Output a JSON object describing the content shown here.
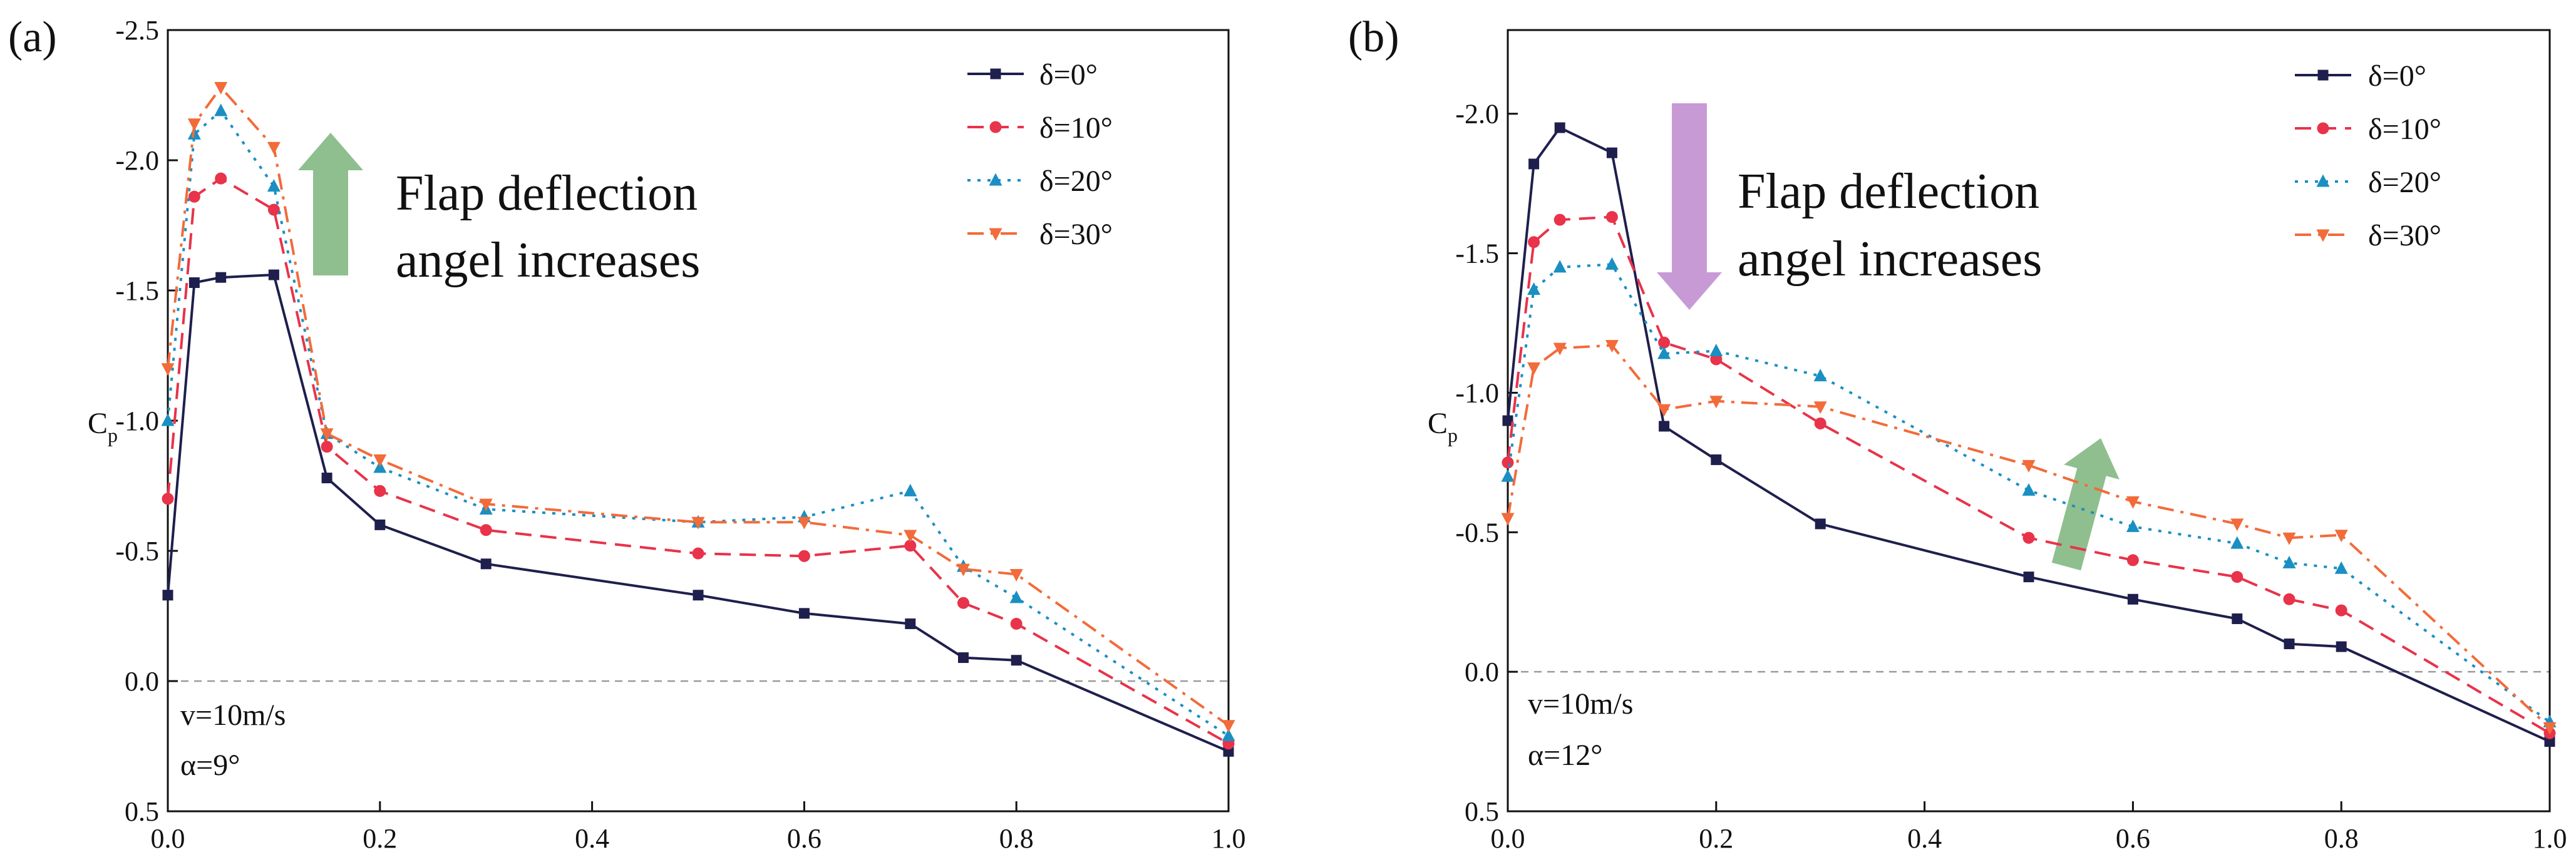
{
  "colors": {
    "s0": "#1f1f4d",
    "s10": "#e8334a",
    "s20": "#1a8fc2",
    "s30": "#f26b3a",
    "arrow_green": "#8fbf8f",
    "arrow_purple": "#c79ad6",
    "zero_line": "#9a9a9a"
  },
  "chart_data": [
    {
      "type": "line",
      "panel_label": "(a)",
      "xlabel": "",
      "ylabel": "C",
      "ylabel_sub": "p",
      "y_inverted": true,
      "xlim": [
        0.0,
        1.0
      ],
      "ylim": [
        0.5,
        -2.5
      ],
      "x_ticks": [
        0.0,
        0.2,
        0.4,
        0.6,
        0.8,
        1.0
      ],
      "x_tick_labels": [
        "0.0",
        "0.2",
        "0.4",
        "0.6",
        "0.8",
        "1.0"
      ],
      "y_ticks": [
        0.5,
        0.0,
        -0.5,
        -1.0,
        -1.5,
        -2.0,
        -2.5
      ],
      "y_tick_labels": [
        "0.5",
        "0.0",
        "-0.5",
        "-1.0",
        "-1.5",
        "-2.0",
        "-2.5"
      ],
      "annotation": {
        "line1": "Flap deflection",
        "line2": "angel increases"
      },
      "conditions": {
        "velocity": "v=10m/s",
        "alpha": "α=9°"
      },
      "legend_position": "top-right",
      "series": [
        {
          "name": "δ=0°",
          "color_key": "s0",
          "dash": "none",
          "marker": "square",
          "x": [
            0,
            0.025,
            0.05,
            0.1,
            0.15,
            0.2,
            0.3,
            0.5,
            0.6,
            0.7,
            0.75,
            0.8,
            1.0
          ],
          "y": [
            -0.33,
            -1.53,
            -1.55,
            -1.56,
            -0.78,
            -0.6,
            -0.45,
            -0.33,
            -0.26,
            -0.22,
            -0.09,
            -0.08,
            0.27
          ]
        },
        {
          "name": "δ=10°",
          "color_key": "s10",
          "dash": "dash",
          "marker": "circle",
          "x": [
            0,
            0.025,
            0.05,
            0.1,
            0.15,
            0.2,
            0.3,
            0.5,
            0.6,
            0.7,
            0.75,
            0.8,
            1.0
          ],
          "y": [
            -0.7,
            -1.86,
            -1.93,
            -1.81,
            -0.9,
            -0.73,
            -0.58,
            -0.49,
            -0.48,
            -0.52,
            -0.3,
            -0.22,
            0.24
          ]
        },
        {
          "name": "δ=20°",
          "color_key": "s20",
          "dash": "dot",
          "marker": "triangle-up",
          "x": [
            0,
            0.025,
            0.05,
            0.1,
            0.15,
            0.2,
            0.3,
            0.5,
            0.6,
            0.7,
            0.75,
            0.8,
            1.0
          ],
          "y": [
            -1.0,
            -2.1,
            -2.19,
            -1.9,
            -0.95,
            -0.82,
            -0.66,
            -0.61,
            -0.63,
            -0.73,
            -0.44,
            -0.32,
            0.21
          ]
        },
        {
          "name": "δ=30°",
          "color_key": "s30",
          "dash": "dash-dot",
          "marker": "triangle-down",
          "x": [
            0,
            0.025,
            0.05,
            0.1,
            0.15,
            0.2,
            0.3,
            0.5,
            0.6,
            0.7,
            0.75,
            0.8,
            1.0
          ],
          "y": [
            -1.2,
            -2.14,
            -2.28,
            -2.05,
            -0.95,
            -0.85,
            -0.68,
            -0.61,
            -0.61,
            -0.56,
            -0.43,
            -0.41,
            0.17
          ]
        }
      ]
    },
    {
      "type": "line",
      "panel_label": "(b)",
      "xlabel": "",
      "ylabel": "C",
      "ylabel_sub": "p",
      "y_inverted": true,
      "xlim": [
        0.0,
        1.0
      ],
      "ylim": [
        0.5,
        -2.3
      ],
      "x_ticks": [
        0.0,
        0.2,
        0.4,
        0.6,
        0.8,
        1.0
      ],
      "x_tick_labels": [
        "0.0",
        "0.2",
        "0.4",
        "0.6",
        "0.8",
        "1.0"
      ],
      "y_ticks": [
        0.5,
        0.0,
        -0.5,
        -1.0,
        -1.5,
        -2.0
      ],
      "y_tick_labels": [
        "0.5",
        "0.0",
        "-0.5",
        "-1.0",
        "-1.5",
        "-2.0"
      ],
      "annotation": {
        "line1": "Flap deflection",
        "line2": "angel increases"
      },
      "conditions": {
        "velocity": "v=10m/s",
        "alpha": "α=12°"
      },
      "legend_position": "top-right",
      "series": [
        {
          "name": "δ=0°",
          "color_key": "s0",
          "dash": "none",
          "marker": "square",
          "x": [
            0,
            0.025,
            0.05,
            0.1,
            0.15,
            0.2,
            0.3,
            0.5,
            0.6,
            0.7,
            0.75,
            0.8,
            1.0
          ],
          "y": [
            -0.9,
            -1.82,
            -1.95,
            -1.86,
            -0.88,
            -0.76,
            -0.53,
            -0.34,
            -0.26,
            -0.19,
            -0.1,
            -0.09,
            0.25
          ]
        },
        {
          "name": "δ=10°",
          "color_key": "s10",
          "dash": "dash",
          "marker": "circle",
          "x": [
            0,
            0.025,
            0.05,
            0.1,
            0.15,
            0.2,
            0.3,
            0.5,
            0.6,
            0.7,
            0.75,
            0.8,
            1.0
          ],
          "y": [
            -0.75,
            -1.54,
            -1.62,
            -1.63,
            -1.18,
            -1.12,
            -0.89,
            -0.48,
            -0.4,
            -0.34,
            -0.26,
            -0.22,
            0.22
          ]
        },
        {
          "name": "δ=20°",
          "color_key": "s20",
          "dash": "dot",
          "marker": "triangle-up",
          "x": [
            0,
            0.025,
            0.05,
            0.1,
            0.15,
            0.2,
            0.3,
            0.5,
            0.6,
            0.7,
            0.75,
            0.8,
            1.0
          ],
          "y": [
            -0.7,
            -1.37,
            -1.45,
            -1.46,
            -1.14,
            -1.15,
            -1.06,
            -0.65,
            -0.52,
            -0.46,
            -0.39,
            -0.37,
            0.18
          ]
        },
        {
          "name": "δ=30°",
          "color_key": "s30",
          "dash": "dash-dot",
          "marker": "triangle-down",
          "x": [
            0,
            0.025,
            0.05,
            0.1,
            0.15,
            0.2,
            0.3,
            0.5,
            0.6,
            0.7,
            0.75,
            0.8,
            1.0
          ],
          "y": [
            -0.55,
            -1.09,
            -1.16,
            -1.17,
            -0.94,
            -0.97,
            -0.95,
            -0.74,
            -0.61,
            -0.53,
            -0.48,
            -0.49,
            0.2
          ]
        }
      ]
    }
  ]
}
